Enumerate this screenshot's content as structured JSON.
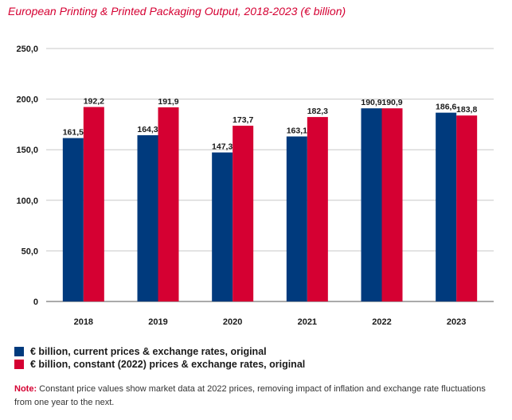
{
  "chart_data": {
    "type": "bar",
    "title": "European Printing & Printed Packaging Output, 2018-2023 (€ billion)",
    "categories": [
      "2018",
      "2019",
      "2020",
      "2021",
      "2022",
      "2023"
    ],
    "series": [
      {
        "name": "€ billion, current prices & exchange rates, original",
        "color": "#003a7d",
        "values": [
          161.5,
          164.3,
          147.3,
          163.1,
          190.9,
          186.6
        ],
        "labels": [
          "161,5",
          "164,3",
          "147,3",
          "163,1",
          "190,9",
          "186,6"
        ]
      },
      {
        "name": "€ billion, constant (2022) prices & exchange rates, original",
        "color": "#d50032",
        "values": [
          192.2,
          191.9,
          173.7,
          182.3,
          190.9,
          183.8
        ],
        "labels": [
          "192,2",
          "191,9",
          "173,7",
          "182,3",
          "190,9",
          "183,8"
        ]
      }
    ],
    "ylim": [
      0,
      250
    ],
    "yticks": [
      0,
      50,
      100,
      150,
      200,
      250
    ],
    "ytick_labels": [
      "0",
      "50,0",
      "100,0",
      "150,0",
      "200,0",
      "250,0"
    ],
    "grid": true,
    "legend_position": "bottom-left"
  },
  "note": {
    "label": "Note:",
    "text": " Constant price values show market data at 2022 prices, removing impact of inflation and exchange rate fluctuations from one year to the next."
  }
}
